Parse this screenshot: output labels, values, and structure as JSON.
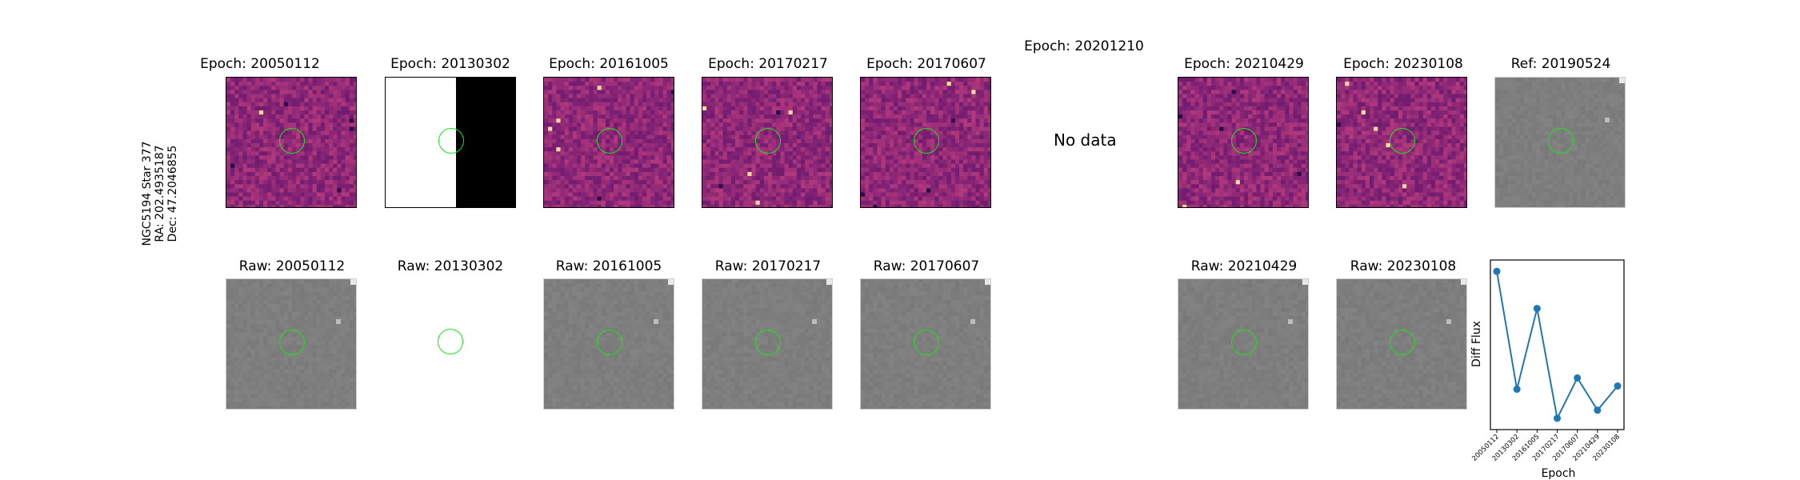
{
  "target": {
    "name": "NGC5194 Star 377",
    "ra": "RA: 202.4935187",
    "dec": "Dec: 47.2046855"
  },
  "diff_panels": [
    {
      "title": "Epoch: 20050112",
      "kind": "diff"
    },
    {
      "title": "Epoch: 20130302",
      "kind": "binary"
    },
    {
      "title": "Epoch: 20161005",
      "kind": "diff"
    },
    {
      "title": "Epoch: 20170217",
      "kind": "diff"
    },
    {
      "title": "Epoch: 20170607",
      "kind": "diff"
    },
    {
      "title": "Epoch: 20201210",
      "kind": "nodata",
      "text": "No data"
    },
    {
      "title": "Epoch: 20210429",
      "kind": "diff"
    },
    {
      "title": "Epoch: 20230108",
      "kind": "diff"
    },
    {
      "title": "Ref: 20190524",
      "kind": "raw"
    }
  ],
  "raw_panels": [
    {
      "title": "Raw: 20050112",
      "kind": "raw"
    },
    {
      "title": "Raw: 20130302",
      "kind": "empty"
    },
    {
      "title": "Raw: 20161005",
      "kind": "raw"
    },
    {
      "title": "Raw: 20170217",
      "kind": "raw"
    },
    {
      "title": "Raw: 20170607",
      "kind": "raw"
    },
    {
      "title": "Raw: 20210429",
      "kind": "raw"
    },
    {
      "title": "Raw: 20230108",
      "kind": "raw"
    }
  ],
  "colors": {
    "aperture": "#19e619",
    "series": "#1f77b4",
    "magma_bg": "#b8407c",
    "raw_bg": "#7f7f7f"
  },
  "chart_data": {
    "type": "line",
    "title": "",
    "xlabel": "Epoch",
    "ylabel": "Diff Flux",
    "categories": [
      "20050112",
      "20130302",
      "20161005",
      "20170217",
      "20170607",
      "20210429",
      "20230108"
    ],
    "series": [
      {
        "values": [
          0.93,
          0.2,
          0.7,
          0.02,
          0.27,
          0.07,
          0.22
        ]
      }
    ],
    "ylim": [
      -0.05,
      1.0
    ],
    "yticks_visible": false,
    "grid": false
  }
}
